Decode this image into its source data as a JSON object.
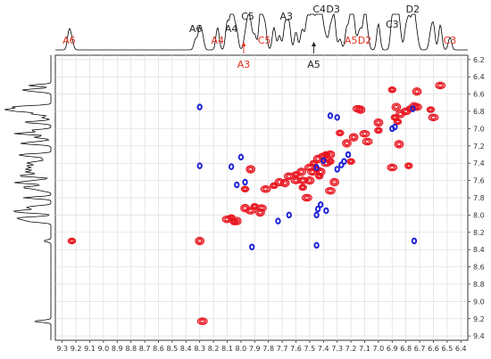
{
  "chart_data": {
    "type": "heatmap",
    "title": "",
    "xlabel": "",
    "ylabel": "",
    "x_axis": {
      "range": [
        9.35,
        6.35
      ],
      "reversed": true,
      "ticks": [
        "9.3",
        "9.2",
        "9.1",
        "9.0",
        "8.9",
        "8.8",
        "8.7",
        "8.6",
        "8.5",
        "8.4",
        "8.3",
        "8.2",
        "8.1",
        "8.0",
        "7.9",
        "7.8",
        "7.7",
        "7.6",
        "7.5",
        "7.4",
        "7.3",
        "7.2",
        "7.1",
        "7.0",
        "6.9",
        "6.8",
        "6.7",
        "6.6",
        "6.5",
        "6.4"
      ]
    },
    "y_axis": {
      "range": [
        6.15,
        9.45
      ],
      "position": "right",
      "reversed": true,
      "ticks": [
        "6.2",
        "6.4",
        "6.6",
        "6.8",
        "7.0",
        "7.2",
        "7.4",
        "7.6",
        "7.8",
        "8.0",
        "8.2",
        "8.4",
        "8.6",
        "8.8",
        "9.0",
        "9.2",
        "9.4"
      ]
    },
    "grid": true,
    "top_labels": [
      {
        "text": "A6",
        "x": 9.25,
        "color": "#e0301e"
      },
      {
        "text": "A6",
        "x": 8.33,
        "color": "#222222"
      },
      {
        "text": "A4",
        "x": 8.17,
        "color": "#e0301e"
      },
      {
        "text": "A4",
        "x": 8.07,
        "color": "#222222"
      },
      {
        "text": "C5",
        "x": 7.95,
        "color": "#222222"
      },
      {
        "text": "C5",
        "x": 7.83,
        "color": "#e0301e"
      },
      {
        "text": "A3",
        "x": 7.67,
        "color": "#222222"
      },
      {
        "text": "C4",
        "x": 7.43,
        "color": "#222222"
      },
      {
        "text": "D3",
        "x": 7.33,
        "color": "#222222"
      },
      {
        "text": "A5",
        "x": 7.2,
        "color": "#e0301e"
      },
      {
        "text": "D2",
        "x": 7.1,
        "color": "#e0301e"
      },
      {
        "text": "C3",
        "x": 6.9,
        "color": "#222222"
      },
      {
        "text": "D2",
        "x": 6.75,
        "color": "#222222"
      },
      {
        "text": "C3",
        "x": 6.48,
        "color": "#e0301e"
      }
    ],
    "arrow_labels": [
      {
        "text": "A3",
        "x": 7.98,
        "color": "#e0301e"
      },
      {
        "text": "A5",
        "x": 7.47,
        "color": "#222222"
      }
    ],
    "series": [
      {
        "name": "",
        "color": "#e8141e",
        "peaks": [
          [
            9.23,
            8.3
          ],
          [
            8.3,
            8.3
          ],
          [
            8.28,
            9.23
          ],
          [
            8.07,
            8.03
          ],
          [
            8.03,
            8.07
          ],
          [
            8.1,
            8.05
          ],
          [
            8.05,
            8.08
          ],
          [
            7.97,
            7.92
          ],
          [
            7.93,
            7.95
          ],
          [
            7.9,
            7.9
          ],
          [
            7.86,
            7.97
          ],
          [
            7.85,
            7.92
          ],
          [
            7.97,
            7.7
          ],
          [
            7.93,
            7.47
          ],
          [
            7.82,
            7.7
          ],
          [
            7.76,
            7.66
          ],
          [
            7.72,
            7.62
          ],
          [
            7.65,
            7.55
          ],
          [
            7.6,
            7.53
          ],
          [
            7.56,
            7.5
          ],
          [
            7.5,
            7.45
          ],
          [
            7.47,
            7.4
          ],
          [
            7.44,
            7.35
          ],
          [
            7.4,
            7.32
          ],
          [
            7.38,
            7.3
          ],
          [
            7.35,
            7.3
          ],
          [
            7.55,
            7.6
          ],
          [
            7.55,
            7.68
          ],
          [
            7.5,
            7.6
          ],
          [
            7.48,
            7.5
          ],
          [
            7.45,
            7.47
          ],
          [
            7.42,
            7.5
          ],
          [
            7.38,
            7.4
          ],
          [
            7.35,
            7.38
          ],
          [
            7.68,
            7.63
          ],
          [
            7.6,
            7.6
          ],
          [
            7.43,
            7.55
          ],
          [
            7.32,
            7.62
          ],
          [
            7.35,
            7.72
          ],
          [
            7.2,
            7.38
          ],
          [
            7.18,
            7.1
          ],
          [
            7.1,
            7.06
          ],
          [
            7.28,
            7.05
          ],
          [
            7.23,
            7.17
          ],
          [
            7.08,
            7.15
          ],
          [
            7.0,
            7.02
          ],
          [
            7.13,
            6.78
          ],
          [
            7.15,
            6.77
          ],
          [
            6.9,
            6.55
          ],
          [
            6.72,
            6.57
          ],
          [
            6.55,
            6.5
          ],
          [
            6.88,
            6.87
          ],
          [
            6.84,
            6.83
          ],
          [
            6.8,
            6.8
          ],
          [
            6.77,
            6.77
          ],
          [
            6.74,
            6.74
          ],
          [
            6.72,
            6.75
          ],
          [
            6.86,
            6.92
          ],
          [
            6.87,
            6.75
          ],
          [
            6.9,
            7.45
          ],
          [
            6.78,
            7.43
          ],
          [
            6.85,
            7.18
          ],
          [
            6.6,
            6.87
          ],
          [
            6.62,
            6.78
          ],
          [
            7.0,
            6.93
          ],
          [
            7.52,
            7.8
          ],
          [
            7.38,
            7.3
          ]
        ]
      },
      {
        "name": "",
        "color": "#1a1fd6",
        "peaks": [
          [
            8.3,
            6.75
          ],
          [
            8.3,
            7.43
          ],
          [
            8.0,
            7.33
          ],
          [
            8.07,
            7.44
          ],
          [
            8.03,
            7.65
          ],
          [
            7.97,
            7.62
          ],
          [
            7.92,
            8.37
          ],
          [
            7.3,
            6.87
          ],
          [
            7.35,
            6.85
          ],
          [
            7.22,
            7.3
          ],
          [
            7.25,
            7.38
          ],
          [
            7.27,
            7.42
          ],
          [
            7.3,
            7.47
          ],
          [
            7.73,
            8.07
          ],
          [
            7.65,
            8.0
          ],
          [
            7.44,
            7.93
          ],
          [
            7.42,
            7.88
          ],
          [
            7.38,
            7.95
          ],
          [
            7.45,
            8.35
          ],
          [
            7.45,
            8.0
          ],
          [
            7.4,
            7.37
          ],
          [
            7.45,
            7.45
          ],
          [
            6.9,
            7.0
          ],
          [
            6.88,
            6.98
          ],
          [
            6.74,
            8.3
          ],
          [
            6.75,
            6.77
          ]
        ]
      }
    ],
    "projection_1d": {
      "position": "top-and-left",
      "color": "#000000"
    }
  }
}
